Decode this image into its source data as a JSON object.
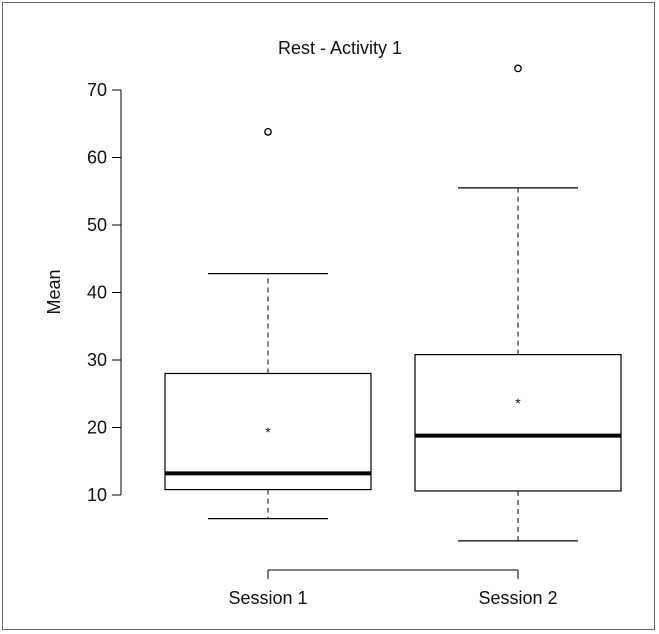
{
  "chart_data": {
    "type": "boxplot",
    "title": "Rest - Activity 1",
    "xlabel": "",
    "ylabel": "Mean",
    "ylim": [
      3,
      75
    ],
    "y_ticks": [
      10,
      20,
      30,
      40,
      50,
      60,
      70
    ],
    "y_tick_labels": [
      "10",
      "20",
      "30",
      "40",
      "50",
      "60",
      "70"
    ],
    "categories": [
      "Session 1",
      "Session 2"
    ],
    "grid": false,
    "legend": "none",
    "boxes": [
      {
        "category": "Session 1",
        "whisker_low": 6.5,
        "q1": 10.8,
        "median": 13.2,
        "q3": 28.0,
        "whisker_high": 42.8,
        "mean": 19.8,
        "outliers": [
          63.8
        ]
      },
      {
        "category": "Session 2",
        "whisker_low": 3.2,
        "q1": 10.6,
        "median": 18.8,
        "q3": 30.8,
        "whisker_high": 55.5,
        "mean": 24.1,
        "outliers": [
          73.2
        ]
      }
    ],
    "colors": {
      "box_stroke": "#000000",
      "median": "#000000",
      "mean_marker": "#555555",
      "frame": "#6a6a6a"
    }
  }
}
